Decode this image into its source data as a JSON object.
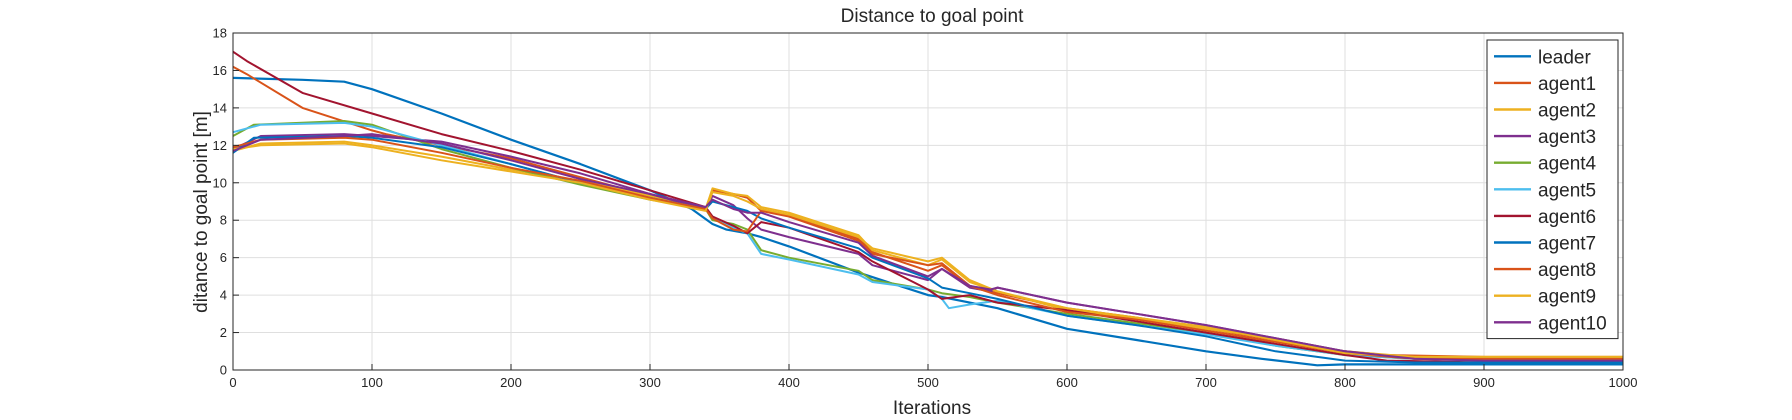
{
  "chart_data": {
    "type": "line",
    "title": "Distance to goal point",
    "xlabel": "Iterations",
    "ylabel": "ditance to goal point [m]",
    "xlim": [
      0,
      1000
    ],
    "ylim": [
      0,
      18
    ],
    "xticks": [
      0,
      100,
      200,
      300,
      400,
      500,
      600,
      700,
      800,
      900,
      1000
    ],
    "yticks": [
      0,
      2,
      4,
      6,
      8,
      10,
      12,
      14,
      16,
      18
    ],
    "grid": true,
    "legend_position": "top-right",
    "series": [
      {
        "name": "leader",
        "color": "#0072BD",
        "width": 2.2,
        "x": [
          0,
          50,
          80,
          100,
          150,
          200,
          250,
          300,
          330,
          345,
          355,
          370,
          380,
          400,
          450,
          500,
          510,
          530,
          550,
          600,
          650,
          700,
          740,
          780,
          800,
          850,
          900,
          1000
        ],
        "y": [
          15.6,
          15.5,
          15.4,
          15.0,
          13.7,
          12.3,
          11.0,
          9.6,
          8.6,
          7.8,
          7.5,
          7.3,
          7.1,
          6.6,
          5.2,
          4.0,
          3.9,
          3.6,
          3.3,
          2.2,
          1.6,
          1.0,
          0.6,
          0.25,
          0.3,
          0.3,
          0.3,
          0.3
        ]
      },
      {
        "name": "agent1",
        "color": "#D95319",
        "width": 2,
        "x": [
          0,
          10,
          50,
          100,
          110,
          150,
          200,
          250,
          300,
          340,
          345,
          360,
          370,
          380,
          400,
          450,
          460,
          500,
          510,
          530,
          550,
          600,
          650,
          700,
          750,
          800,
          830,
          900,
          1000
        ],
        "y": [
          16.2,
          15.8,
          14.0,
          12.8,
          12.6,
          12.0,
          11.3,
          10.3,
          9.3,
          8.6,
          9.6,
          9.4,
          9.2,
          8.5,
          8.3,
          7.0,
          6.3,
          5.3,
          5.6,
          4.5,
          4.1,
          3.3,
          2.8,
          2.2,
          1.6,
          1.0,
          0.8,
          0.7,
          0.7
        ]
      },
      {
        "name": "agent2",
        "color": "#EDB120",
        "width": 2,
        "x": [
          0,
          20,
          80,
          100,
          150,
          200,
          250,
          300,
          340,
          345,
          360,
          370,
          380,
          400,
          450,
          460,
          500,
          510,
          530,
          550,
          600,
          650,
          700,
          750,
          800,
          850,
          900,
          1000
        ],
        "y": [
          11.7,
          12.1,
          12.2,
          12.0,
          11.4,
          10.7,
          10.1,
          9.3,
          8.6,
          9.7,
          9.4,
          9.3,
          8.7,
          8.4,
          7.2,
          6.4,
          5.6,
          5.9,
          4.7,
          4.2,
          3.2,
          2.8,
          2.2,
          1.7,
          1.0,
          0.7,
          0.7,
          0.7
        ]
      },
      {
        "name": "agent3",
        "color": "#7E2F8E",
        "width": 2,
        "x": [
          0,
          20,
          80,
          100,
          150,
          200,
          250,
          300,
          340,
          345,
          360,
          370,
          380,
          400,
          450,
          460,
          500,
          510,
          530,
          545,
          550,
          600,
          650,
          700,
          750,
          800,
          850,
          900,
          1000
        ],
        "y": [
          11.8,
          12.5,
          12.6,
          12.5,
          12.2,
          11.4,
          10.5,
          9.4,
          8.6,
          9.3,
          8.8,
          8.1,
          7.5,
          7.1,
          6.2,
          5.6,
          4.8,
          5.4,
          4.4,
          4.2,
          4.4,
          3.6,
          3.0,
          2.4,
          1.7,
          1.0,
          0.6,
          0.5,
          0.5
        ]
      },
      {
        "name": "agent4",
        "color": "#77AC30",
        "width": 2,
        "x": [
          0,
          15,
          80,
          100,
          150,
          200,
          250,
          300,
          340,
          345,
          360,
          370,
          380,
          400,
          450,
          460,
          500,
          510,
          530,
          550,
          600,
          650,
          700,
          750,
          800,
          850,
          900,
          1000
        ],
        "y": [
          12.5,
          13.1,
          13.3,
          13.1,
          11.8,
          10.8,
          9.9,
          9.1,
          8.6,
          8.0,
          7.8,
          7.5,
          6.4,
          6.0,
          5.3,
          4.8,
          4.3,
          4.1,
          3.9,
          3.6,
          3.0,
          2.5,
          2.0,
          1.3,
          0.8,
          0.6,
          0.6,
          0.6
        ]
      },
      {
        "name": "agent5",
        "color": "#4DBEEE",
        "width": 2,
        "x": [
          0,
          20,
          80,
          100,
          150,
          200,
          250,
          300,
          340,
          345,
          360,
          370,
          380,
          400,
          450,
          460,
          500,
          510,
          515,
          530,
          540,
          550,
          600,
          650,
          700,
          750,
          800,
          850,
          900,
          1000
        ],
        "y": [
          12.7,
          13.1,
          13.2,
          13.0,
          12.0,
          11.0,
          10.0,
          9.2,
          8.6,
          8.2,
          7.6,
          7.3,
          6.2,
          5.9,
          5.1,
          4.7,
          4.3,
          3.8,
          3.3,
          3.5,
          3.6,
          3.7,
          2.9,
          2.4,
          1.9,
          1.3,
          0.8,
          0.6,
          0.6,
          0.6
        ]
      },
      {
        "name": "agent6",
        "color": "#A2142F",
        "width": 2,
        "x": [
          0,
          10,
          50,
          100,
          150,
          200,
          250,
          300,
          340,
          345,
          360,
          370,
          380,
          400,
          450,
          460,
          500,
          510,
          530,
          550,
          600,
          650,
          700,
          750,
          800,
          830,
          900,
          1000
        ],
        "y": [
          17.0,
          16.5,
          14.8,
          13.7,
          12.6,
          11.7,
          10.7,
          9.6,
          8.7,
          8.2,
          7.7,
          7.3,
          7.9,
          7.6,
          6.3,
          5.8,
          4.3,
          3.8,
          4.0,
          3.6,
          3.2,
          2.6,
          2.0,
          1.4,
          0.8,
          0.5,
          0.4,
          0.4
        ]
      },
      {
        "name": "agent7",
        "color": "#0072BD",
        "width": 2,
        "x": [
          0,
          15,
          80,
          100,
          150,
          200,
          250,
          300,
          340,
          345,
          360,
          370,
          380,
          400,
          450,
          460,
          500,
          510,
          530,
          550,
          600,
          650,
          700,
          750,
          780,
          800,
          850,
          900,
          1000
        ],
        "y": [
          11.6,
          12.4,
          12.5,
          12.4,
          11.9,
          11.0,
          10.0,
          9.2,
          8.6,
          9.0,
          8.7,
          8.5,
          8.1,
          7.6,
          6.5,
          6.0,
          4.9,
          4.4,
          4.1,
          3.8,
          2.9,
          2.4,
          1.8,
          1.0,
          0.7,
          0.5,
          0.4,
          0.4,
          0.4
        ]
      },
      {
        "name": "agent8",
        "color": "#D95319",
        "width": 2,
        "x": [
          0,
          20,
          80,
          100,
          150,
          200,
          250,
          300,
          340,
          345,
          360,
          370,
          380,
          400,
          450,
          460,
          500,
          510,
          530,
          550,
          600,
          650,
          700,
          750,
          800,
          850,
          900,
          1000
        ],
        "y": [
          11.9,
          12.3,
          12.4,
          12.3,
          11.6,
          10.8,
          10.1,
          9.2,
          8.6,
          8.1,
          7.5,
          7.4,
          8.5,
          8.2,
          6.9,
          6.2,
          5.6,
          5.7,
          4.5,
          4.0,
          3.1,
          2.7,
          2.1,
          1.5,
          0.9,
          0.6,
          0.6,
          0.6
        ]
      },
      {
        "name": "agent9",
        "color": "#EDB120",
        "width": 2,
        "x": [
          0,
          20,
          80,
          100,
          150,
          200,
          250,
          300,
          340,
          345,
          360,
          370,
          380,
          400,
          450,
          460,
          500,
          510,
          530,
          550,
          600,
          650,
          700,
          750,
          800,
          850,
          900,
          1000
        ],
        "y": [
          11.8,
          12.0,
          12.1,
          11.9,
          11.2,
          10.6,
          10.0,
          9.1,
          8.5,
          9.5,
          9.3,
          9.0,
          8.6,
          8.3,
          7.1,
          6.5,
          5.8,
          6.0,
          4.8,
          4.2,
          3.3,
          2.8,
          2.3,
          1.6,
          0.9,
          0.7,
          0.7,
          0.7
        ]
      },
      {
        "name": "agent10",
        "color": "#7E2F8E",
        "width": 2,
        "x": [
          0,
          20,
          80,
          100,
          150,
          200,
          250,
          300,
          340,
          345,
          360,
          370,
          380,
          400,
          450,
          460,
          500,
          510,
          530,
          545,
          550,
          600,
          650,
          700,
          750,
          800,
          850,
          900,
          1000
        ],
        "y": [
          11.7,
          12.3,
          12.5,
          12.6,
          12.1,
          11.2,
          10.2,
          9.4,
          8.7,
          9.1,
          8.6,
          8.4,
          8.4,
          7.9,
          6.8,
          6.1,
          5.0,
          5.4,
          4.5,
          4.3,
          4.4,
          3.6,
          3.0,
          2.4,
          1.7,
          1.0,
          0.6,
          0.5,
          0.5
        ]
      }
    ]
  }
}
